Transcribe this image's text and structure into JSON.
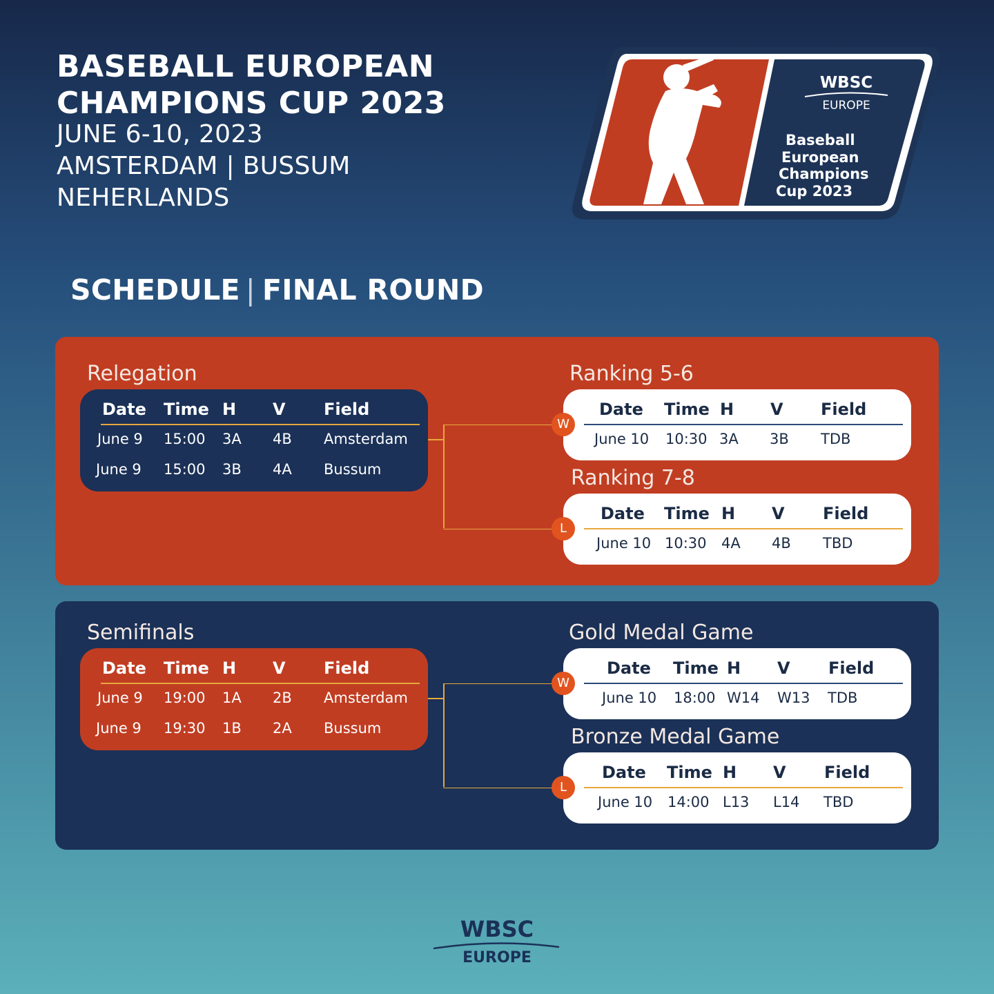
{
  "header": {
    "title_line1": "BASEBALL EUROPEAN",
    "title_line2": "CHAMPIONS CUP 2023",
    "dates": "JUNE 6-10, 2023",
    "cities": "AMSTERDAM | BUSSUM",
    "country": "NEHERLANDS"
  },
  "logo": {
    "org": "WBSC",
    "region": "EUROPE",
    "event_line1": "Baseball",
    "event_line2": "European",
    "event_line3": "Champions",
    "event_line4": "Cup 2023",
    "icon": "batter-silhouette-icon"
  },
  "schedule": {
    "label": "SCHEDULE",
    "separator": "|",
    "round": "FINAL ROUND"
  },
  "columns": {
    "date": "Date",
    "time": "Time",
    "home": "H",
    "visitor": "V",
    "field": "Field"
  },
  "relegation": {
    "title": "Relegation",
    "rows": [
      {
        "date": "June 9",
        "time": "15:00",
        "h": "3A",
        "v": "4B",
        "field": "Amsterdam"
      },
      {
        "date": "June 9",
        "time": "15:00",
        "h": "3B",
        "v": "4A",
        "field": "Bussum"
      }
    ]
  },
  "ranking56": {
    "title": "Ranking 5-6",
    "badge": "W",
    "row": {
      "date": "June 10",
      "time": "10:30",
      "h": "3A",
      "v": "3B",
      "field": "TDB"
    }
  },
  "ranking78": {
    "title": "Ranking 7-8",
    "badge": "L",
    "row": {
      "date": "June 10",
      "time": "10:30",
      "h": "4A",
      "v": "4B",
      "field": "TBD"
    }
  },
  "semifinals": {
    "title": "Semifinals",
    "rows": [
      {
        "date": "June 9",
        "time": "19:00",
        "h": "1A",
        "v": "2B",
        "field": "Amsterdam"
      },
      {
        "date": "June 9",
        "time": "19:30",
        "h": "1B",
        "v": "2A",
        "field": "Bussum"
      }
    ]
  },
  "gold": {
    "title": "Gold Medal Game",
    "badge": "W",
    "row": {
      "date": "June 10",
      "time": "18:00",
      "h": "W14",
      "v": "W13",
      "field": "TDB"
    }
  },
  "bronze": {
    "title": "Bronze Medal Game",
    "badge": "L",
    "row": {
      "date": "June 10",
      "time": "14:00",
      "h": "L13",
      "v": "L14",
      "field": "TBD"
    }
  },
  "footer": {
    "org": "WBSC",
    "region": "EUROPE"
  },
  "colors": {
    "orange": "#c13d22",
    "navy": "#1b3157",
    "accent_line": "#e8a83c",
    "badge": "#e2541f"
  }
}
